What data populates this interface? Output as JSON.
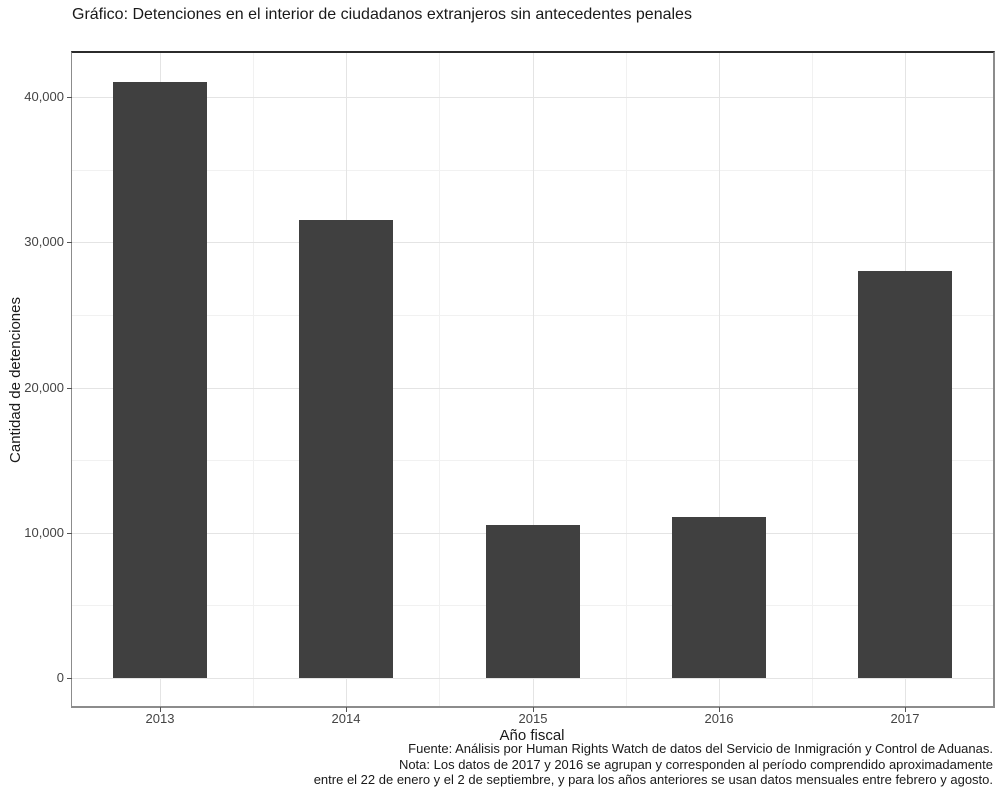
{
  "chart_data": {
    "type": "bar",
    "title": "Gráfico: Detenciones en el interior de ciudadanos extranjeros sin antecedentes penales",
    "categories": [
      "2013",
      "2014",
      "2015",
      "2016",
      "2017"
    ],
    "values": [
      41000,
      31500,
      10500,
      11100,
      28000
    ],
    "xlabel": "Año fiscal",
    "ylabel": "Cantidad de detenciones",
    "ylim": [
      0,
      43000
    ],
    "yticks": [
      0,
      10000,
      20000,
      30000,
      40000
    ],
    "ytick_labels": [
      "0",
      "10,000",
      "20,000",
      "30,000",
      "40,000"
    ],
    "grid": "major horizontal+vertical with minor lines between, light gray on white panel",
    "legend": "none",
    "bar_color": "#404040",
    "caption_lines": [
      "Fuente: Análisis por Human Rights Watch de datos del Servicio de Inmigración y Control de Aduanas.",
      "Nota: Los datos de 2017 y 2016 se agrupan y corresponden al período comprendido aproximadamente",
      "entre el 22 de enero y el 2 de septiembre, y para los años anteriores se usan datos mensuales entre febrero y agosto."
    ]
  },
  "colors": {
    "bar": "#404040",
    "grid_major": "#e4e4e4",
    "grid_minor": "#f1f1f1",
    "panel_border_top": "#2b2b2b",
    "panel_border": "#8c8c8c",
    "title_text": "#1a1a1a",
    "tick_text": "#444444",
    "background": "#ffffff"
  }
}
